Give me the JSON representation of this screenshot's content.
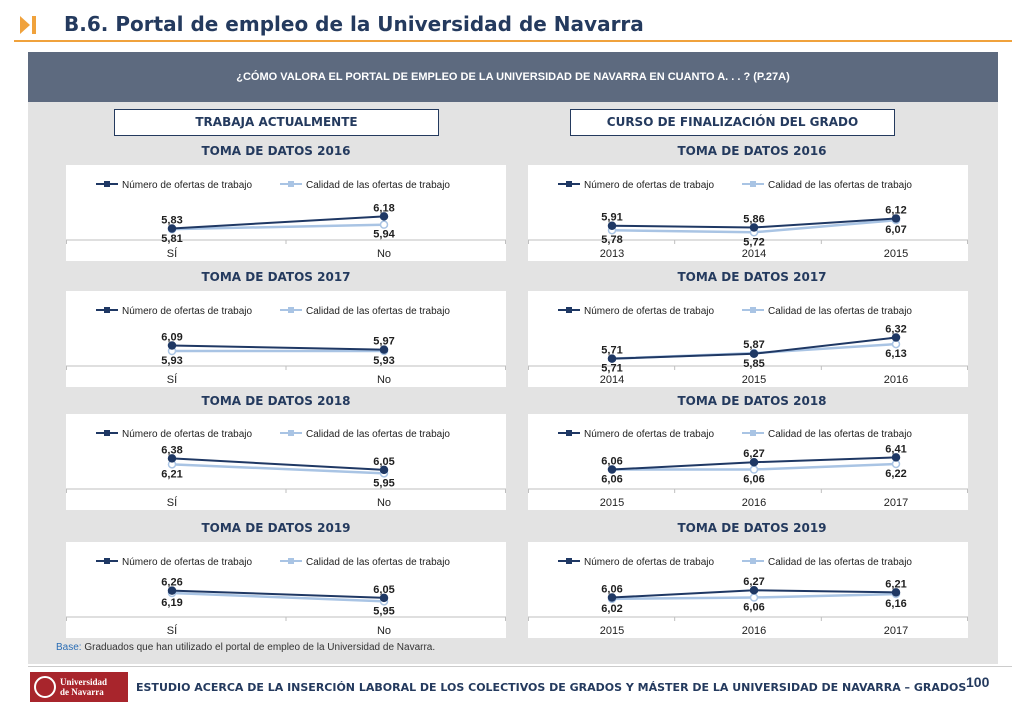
{
  "page": {
    "title": "B.6. Portal de empleo de la Universidad de Navarra",
    "question": "¿CÓMO VALORA EL PORTAL DE EMPLEO DE LA UNIVERSIDAD DE NAVARRA EN CUANTO A. . . ? (P.27A)",
    "left_header": "TRABAJA ACTUALMENTE",
    "right_header": "CURSO DE FINALIZACIÓN DEL GRADO",
    "base_label": "Base:",
    "base_text": " Graduados que han utilizado el portal de empleo de la Universidad de Navarra.",
    "footer_text": "ESTUDIO ACERCA DE LA INSERCIÓN LABORAL DE LOS COLECTIVOS DE GRADOS Y MÁSTER DE LA UNIVERSIDAD DE NAVARRA – GRADOS",
    "page_number": "100",
    "logo_line1": "Universidad",
    "logo_line2": "de Navarra",
    "colors": {
      "series1": "#1f3864",
      "series2": "#a9c4e4",
      "accent": "#f0a23c",
      "banner": "#5d6a7f"
    }
  },
  "chart_data": [
    {
      "id": "l2016",
      "type": "line",
      "title": "TOMA DE DATOS 2016",
      "categories": [
        "SÍ",
        "No"
      ],
      "ylim": [
        5.0,
        7.0
      ],
      "series": [
        {
          "name": "Número de ofertas de trabajo",
          "values": [
            5.83,
            6.18
          ],
          "labels": [
            "5,83",
            "6,18"
          ]
        },
        {
          "name": "Calidad de las ofertas de trabajo",
          "values": [
            5.81,
            5.94
          ],
          "labels": [
            "5,81",
            "5,94"
          ]
        }
      ]
    },
    {
      "id": "l2017",
      "type": "line",
      "title": "TOMA DE DATOS 2017",
      "categories": [
        "SÍ",
        "No"
      ],
      "ylim": [
        5.0,
        7.0
      ],
      "series": [
        {
          "name": "Número de ofertas de trabajo",
          "values": [
            6.09,
            5.97
          ],
          "labels": [
            "6,09",
            "5,97"
          ]
        },
        {
          "name": "Calidad de las ofertas de trabajo",
          "values": [
            5.93,
            5.93
          ],
          "labels": [
            "5,93",
            "5,93"
          ]
        }
      ]
    },
    {
      "id": "l2018",
      "type": "line",
      "title": "TOMA DE DATOS 2018",
      "categories": [
        "SÍ",
        "No"
      ],
      "ylim": [
        5.0,
        7.0
      ],
      "series": [
        {
          "name": "Número de ofertas de trabajo",
          "values": [
            6.38,
            6.05
          ],
          "labels": [
            "6,38",
            "6,05"
          ]
        },
        {
          "name": "Calidad de las ofertas de trabajo",
          "values": [
            6.21,
            5.95
          ],
          "labels": [
            "6,21",
            "5,95"
          ]
        }
      ]
    },
    {
      "id": "l2019",
      "type": "line",
      "title": "TOMA DE DATOS 2019",
      "categories": [
        "SÍ",
        "No"
      ],
      "ylim": [
        5.0,
        7.0
      ],
      "series": [
        {
          "name": "Número de ofertas de trabajo",
          "values": [
            6.26,
            6.05
          ],
          "labels": [
            "6,26",
            "6,05"
          ]
        },
        {
          "name": "Calidad de las ofertas de trabajo",
          "values": [
            6.19,
            5.95
          ],
          "labels": [
            "6,19",
            "5,95"
          ]
        }
      ]
    },
    {
      "id": "r2016",
      "type": "line",
      "title": "TOMA DE DATOS 2016",
      "categories": [
        "2013",
        "2014",
        "2015"
      ],
      "ylim": [
        5.0,
        7.0
      ],
      "series": [
        {
          "name": "Número de ofertas de trabajo",
          "values": [
            5.91,
            5.86,
            6.12
          ],
          "labels": [
            "5,91",
            "5,86",
            "6,12"
          ]
        },
        {
          "name": "Calidad de las ofertas de trabajo",
          "values": [
            5.78,
            5.72,
            6.07
          ],
          "labels": [
            "5,78",
            "5,72",
            "6,07"
          ]
        }
      ]
    },
    {
      "id": "r2017",
      "type": "line",
      "title": "TOMA DE DATOS 2017",
      "categories": [
        "2014",
        "2015",
        "2016"
      ],
      "ylim": [
        5.0,
        7.0
      ],
      "series": [
        {
          "name": "Número de ofertas de trabajo",
          "values": [
            5.71,
            5.85,
            6.32
          ],
          "labels": [
            "5,71",
            "5,85",
            "6,32"
          ]
        },
        {
          "name": "Calidad de las ofertas de trabajo",
          "values": [
            5.71,
            5.87,
            6.13
          ],
          "labels": [
            "5,71",
            "5,87",
            "6,13"
          ]
        }
      ]
    },
    {
      "id": "r2018",
      "type": "line",
      "title": "TOMA DE DATOS 2018",
      "categories": [
        "2015",
        "2016",
        "2017"
      ],
      "ylim": [
        5.0,
        7.0
      ],
      "series": [
        {
          "name": "Número de ofertas de trabajo",
          "values": [
            6.06,
            6.27,
            6.41
          ],
          "labels": [
            "6,06",
            "6,27",
            "6,41"
          ]
        },
        {
          "name": "Calidad de las ofertas de trabajo",
          "values": [
            6.06,
            6.06,
            6.22
          ],
          "labels": [
            "6,06",
            "6,06",
            "6,22"
          ]
        }
      ]
    },
    {
      "id": "r2019",
      "type": "line",
      "title": "TOMA DE DATOS 2019",
      "categories": [
        "2015",
        "2016",
        "2017"
      ],
      "ylim": [
        5.0,
        7.0
      ],
      "series": [
        {
          "name": "Número de ofertas de trabajo",
          "values": [
            6.06,
            6.27,
            6.21
          ],
          "labels": [
            "6,06",
            "6,27",
            "6,21"
          ]
        },
        {
          "name": "Calidad de las ofertas de trabajo",
          "values": [
            6.02,
            6.06,
            6.16
          ],
          "labels": [
            "6,02",
            "6,06",
            "6,16"
          ]
        }
      ]
    }
  ]
}
